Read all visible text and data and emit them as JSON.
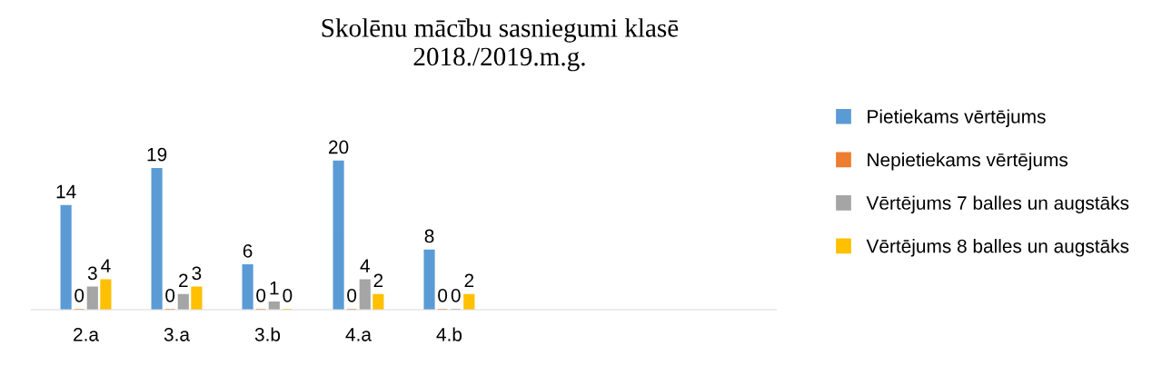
{
  "chart_data": {
    "type": "bar",
    "title": "Skolēnu mācību sasniegumi klasē\n2018./2019.m.g.",
    "categories": [
      "2.a",
      "3.a",
      "3.b",
      "4.a",
      "4.b",
      null,
      null,
      null
    ],
    "series": [
      {
        "name": "Pietiekams vērtējums",
        "color": "#5b9bd5",
        "values": [
          14,
          19,
          6,
          20,
          8,
          null,
          null,
          null
        ]
      },
      {
        "name": "Nepietiekams vērtējums",
        "color": "#ed7d31",
        "values": [
          0,
          0,
          0,
          0,
          0,
          null,
          null,
          null
        ]
      },
      {
        "name": "Vērtējums 7 balles un augstāks",
        "color": "#a5a5a5",
        "values": [
          3,
          2,
          1,
          4,
          0,
          null,
          null,
          null
        ]
      },
      {
        "name": "Vērtējums 8 balles un augstāks",
        "color": "#ffc000",
        "values": [
          4,
          3,
          0,
          2,
          2,
          null,
          null,
          null
        ]
      }
    ],
    "data_labels": true,
    "legend": "right",
    "grid": false
  }
}
